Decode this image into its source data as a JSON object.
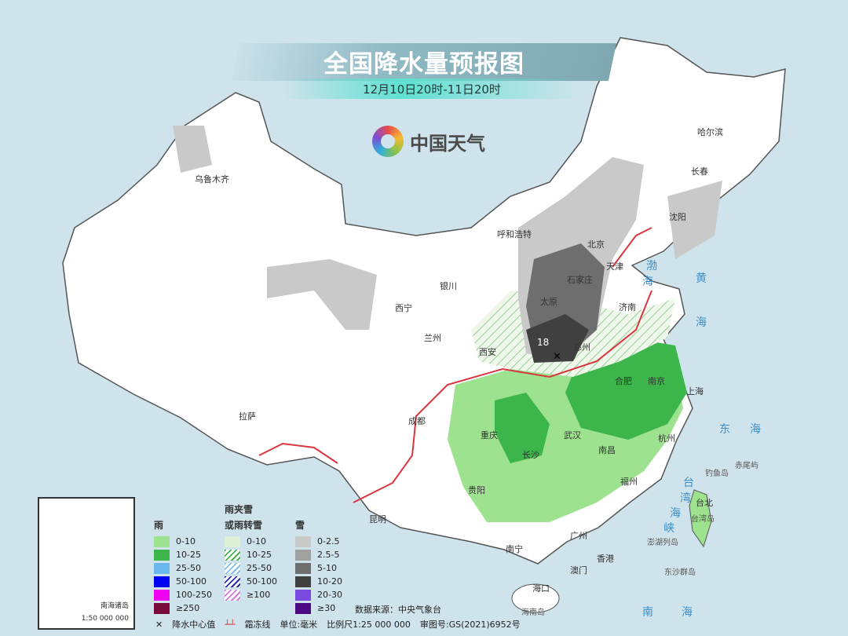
{
  "title": "全国降水量预报图",
  "subtitle": "12月10日20时-11日20时",
  "brand": "中国天气",
  "colors": {
    "sea": "#cfe3ec",
    "land": "#ffffff",
    "rain_0_10": "#9de38f",
    "rain_10_25": "#3cb54a",
    "snow_0_2_5": "#c9c9c9",
    "snow_2_5_5": "#a0a0a0",
    "snow_5_10": "#6e6e6e",
    "snow_10_20": "#404040",
    "frost_line": "#d9363e"
  },
  "cities": [
    "乌鲁木齐",
    "哈尔滨",
    "长春",
    "沈阳",
    "呼和浩特",
    "北京",
    "天津",
    "石家庄",
    "太原",
    "济南",
    "郑州",
    "西宁",
    "银川",
    "兰州",
    "西安",
    "合肥",
    "南京",
    "上海",
    "杭州",
    "武汉",
    "成都",
    "重庆",
    "长沙",
    "南昌",
    "拉萨",
    "贵阳",
    "福州",
    "台北",
    "昆明",
    "南宁",
    "广州",
    "香港",
    "澳门",
    "海口"
  ],
  "seas": [
    "渤",
    "海",
    "黄",
    "海",
    "东",
    "海",
    "南",
    "海",
    "台",
    "湾",
    "海",
    "峡"
  ],
  "islands": [
    "钓鱼岛",
    "赤尾屿",
    "台湾岛",
    "澎湖列岛",
    "东沙群岛",
    "海南岛"
  ],
  "precip_center": {
    "value": "18",
    "label": "降水中心值"
  },
  "legend": {
    "rain": {
      "title": "雨",
      "items": [
        "0-10",
        "10-25",
        "25-50",
        "50-100",
        "100-250",
        "≥250"
      ],
      "colors": [
        "#9de38f",
        "#3cb54a",
        "#6bb8ef",
        "#0000f0",
        "#f000f0",
        "#7a0a3a"
      ]
    },
    "mixed": {
      "title_1": "雨夹雪",
      "title_2": "或雨转雪",
      "items": [
        "0-10",
        "10-25",
        "25-50",
        "50-100",
        "≥100"
      ],
      "colors": [
        "#dff0d8",
        "#4cb050",
        "#7fbfe8",
        "#2a2aa8",
        "#d67ad6"
      ]
    },
    "snow": {
      "title": "雪",
      "items": [
        "0-2.5",
        "2.5-5",
        "5-10",
        "10-20",
        "20-30",
        "≥30"
      ],
      "colors": [
        "#c9c9c9",
        "#a0a0a0",
        "#6e6e6e",
        "#404040",
        "#7a4ae0",
        "#4b0a82"
      ]
    }
  },
  "source": "数据来源：中央气象台",
  "footer": {
    "center_label": "降水中心值",
    "frost_label": "霜冻线",
    "unit": "单位:毫米",
    "scale": "比例尺1:25 000 000",
    "approval": "审图号:GS(2021)6952号"
  },
  "inset": {
    "name": "南海诸岛",
    "scale": "1:50 000 000"
  }
}
